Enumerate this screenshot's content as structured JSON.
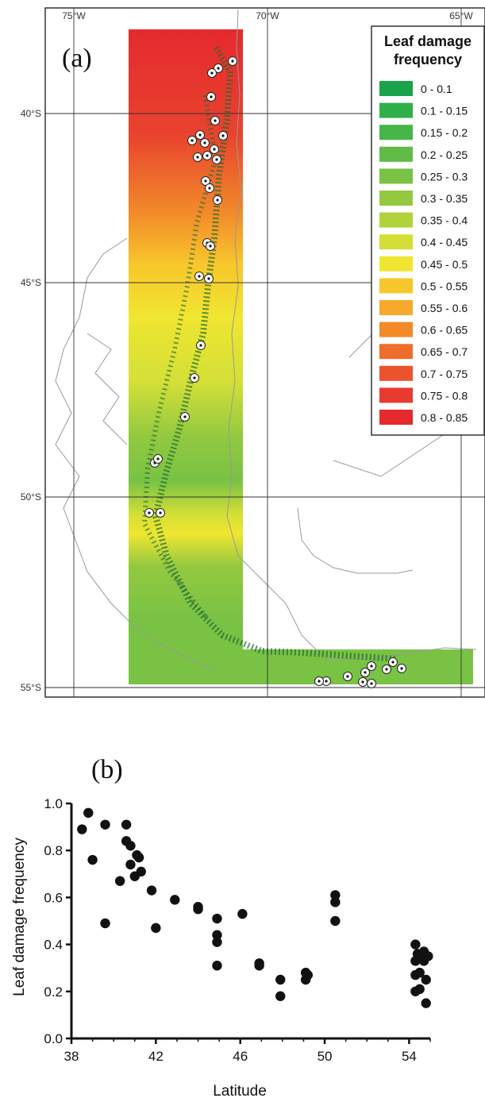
{
  "panel_a": {
    "label": "(a)",
    "lon_ticks": [
      "75°W",
      "70°W",
      "65°W"
    ],
    "lat_ticks": [
      "40°S",
      "45°S",
      "50°S",
      "55°S"
    ],
    "legend_title_line1": "Leaf damage",
    "legend_title_line2": "frequency",
    "legend": [
      {
        "label": "0 - 0.1",
        "color": "#1aa34a"
      },
      {
        "label": "0.1 - 0.15",
        "color": "#2fb04a"
      },
      {
        "label": "0.15 - 0.2",
        "color": "#46b649"
      },
      {
        "label": "0.2 - 0.25",
        "color": "#5fbc47"
      },
      {
        "label": "0.25 - 0.3",
        "color": "#79c244"
      },
      {
        "label": "0.3 - 0.35",
        "color": "#93c940"
      },
      {
        "label": "0.35 - 0.4",
        "color": "#b1d23c"
      },
      {
        "label": "0.4 - 0.45",
        "color": "#d3df37"
      },
      {
        "label": "0.45 - 0.5",
        "color": "#efe631"
      },
      {
        "label": "0.5 - 0.55",
        "color": "#f8c72c"
      },
      {
        "label": "0.55 - 0.6",
        "color": "#f6a92a"
      },
      {
        "label": "0.6 - 0.65",
        "color": "#f28a2a"
      },
      {
        "label": "0.65 - 0.7",
        "color": "#ef6d2c"
      },
      {
        "label": "0.7 - 0.75",
        "color": "#ec532d"
      },
      {
        "label": "0.75 - 0.8",
        "color": "#e83b2f"
      },
      {
        "label": "0.8 - 0.85",
        "color": "#e52a2e"
      }
    ]
  },
  "chart_data": {
    "type": "scatter",
    "label": "(b)",
    "xlabel": "Latitude",
    "ylabel": "Leaf damage frequency",
    "xlim": [
      38,
      55
    ],
    "ylim": [
      0.0,
      1.0
    ],
    "xticks": [
      38,
      42,
      46,
      50,
      54
    ],
    "yticks": [
      "0.0",
      "0.2",
      "0.4",
      "0.6",
      "0.8",
      "1.0"
    ],
    "grid": false,
    "points": [
      [
        38.5,
        0.89
      ],
      [
        38.8,
        0.96
      ],
      [
        39.0,
        0.76
      ],
      [
        39.6,
        0.91
      ],
      [
        39.6,
        0.49
      ],
      [
        40.3,
        0.67
      ],
      [
        40.6,
        0.91
      ],
      [
        40.6,
        0.84
      ],
      [
        40.8,
        0.82
      ],
      [
        40.8,
        0.74
      ],
      [
        41.0,
        0.69
      ],
      [
        41.1,
        0.78
      ],
      [
        41.2,
        0.77
      ],
      [
        41.3,
        0.71
      ],
      [
        41.8,
        0.63
      ],
      [
        42.0,
        0.47
      ],
      [
        42.9,
        0.59
      ],
      [
        44.0,
        0.56
      ],
      [
        44.0,
        0.55
      ],
      [
        44.9,
        0.51
      ],
      [
        44.9,
        0.44
      ],
      [
        44.9,
        0.41
      ],
      [
        44.9,
        0.31
      ],
      [
        46.1,
        0.53
      ],
      [
        46.9,
        0.32
      ],
      [
        46.9,
        0.31
      ],
      [
        47.9,
        0.25
      ],
      [
        47.9,
        0.18
      ],
      [
        49.1,
        0.28
      ],
      [
        49.2,
        0.27
      ],
      [
        49.1,
        0.25
      ],
      [
        50.5,
        0.61
      ],
      [
        50.5,
        0.58
      ],
      [
        50.5,
        0.5
      ],
      [
        54.3,
        0.4
      ],
      [
        54.3,
        0.33
      ],
      [
        54.3,
        0.27
      ],
      [
        54.3,
        0.2
      ],
      [
        54.4,
        0.36
      ],
      [
        54.5,
        0.34
      ],
      [
        54.5,
        0.28
      ],
      [
        54.5,
        0.21
      ],
      [
        54.7,
        0.37
      ],
      [
        54.7,
        0.33
      ],
      [
        54.8,
        0.25
      ],
      [
        54.8,
        0.15
      ],
      [
        54.9,
        0.35
      ]
    ]
  }
}
